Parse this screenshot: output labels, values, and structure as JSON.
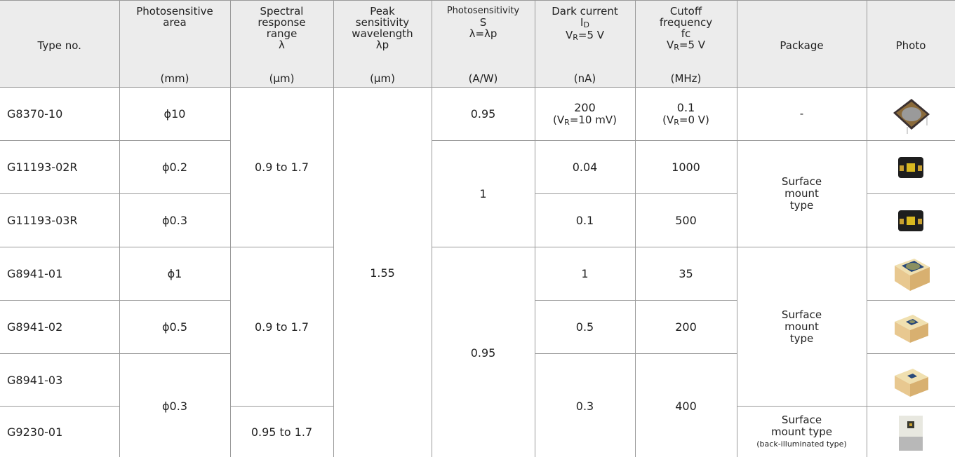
{
  "table": {
    "header": [
      {
        "lines": [
          [
            "Type no."
          ]
        ]
      },
      {
        "lines": [
          [
            "Photosensitive"
          ],
          [
            "area"
          ]
        ],
        "unit": "(mm)"
      },
      {
        "lines": [
          [
            "Spectral"
          ],
          [
            "response"
          ],
          [
            "range"
          ],
          [
            "λ"
          ]
        ],
        "unit": "(µm)"
      },
      {
        "lines": [
          [
            "Peak"
          ],
          [
            "sensitivity"
          ],
          [
            "wavelength"
          ],
          [
            "λp"
          ]
        ],
        "unit": "(µm)"
      },
      {
        "lines": [
          [
            "Photosensitivity"
          ],
          [
            "S"
          ],
          [
            "λ=λp"
          ]
        ],
        "unit": "(A/W)"
      },
      {
        "lines": [
          [
            "Dark current"
          ],
          [
            "I",
            "D"
          ],
          [
            "V",
            "R",
            "=5 V"
          ]
        ],
        "unit": "(nA)"
      },
      {
        "lines": [
          [
            "Cutoff"
          ],
          [
            "frequency"
          ],
          [
            "fc"
          ],
          [
            "V",
            "R",
            "=5 V"
          ]
        ],
        "unit": "(MHz)"
      },
      {
        "lines": [
          [
            "Package"
          ]
        ]
      },
      {
        "lines": [
          [
            "Photo"
          ]
        ]
      }
    ],
    "rows": [
      {
        "type": "G8370-10",
        "area": "ϕ10",
        "spectral": "0.9 to 1.7",
        "peak": "1.55",
        "sensitivity": "0.95",
        "dark": {
          "value": "200",
          "note": [
            "(V",
            "R",
            "=10 mV)"
          ]
        },
        "cutoff": {
          "value": "0.1",
          "note": [
            "(V",
            "R",
            "=0 V)"
          ]
        },
        "package": [
          "-"
        ]
      },
      {
        "type": "G11193-02R",
        "area": "ϕ0.2",
        "sensitivity": "1",
        "dark": {
          "value": "0.04"
        },
        "cutoff": {
          "value": "1000"
        },
        "package": [
          "Surface",
          "mount",
          "type"
        ]
      },
      {
        "type": "G11193-03R",
        "area": "ϕ0.3",
        "dark": {
          "value": "0.1"
        },
        "cutoff": {
          "value": "500"
        }
      },
      {
        "type": "G8941-01",
        "area": "ϕ1",
        "spectral": "0.9 to 1.7",
        "sensitivity": "0.95",
        "dark": {
          "value": "1"
        },
        "cutoff": {
          "value": "35"
        },
        "package": [
          "Surface",
          "mount",
          "type"
        ]
      },
      {
        "type": "G8941-02",
        "area": "ϕ0.5",
        "dark": {
          "value": "0.5"
        },
        "cutoff": {
          "value": "200"
        }
      },
      {
        "type": "G8941-03",
        "area": "ϕ0.3",
        "dark": {
          "value": "0.3"
        },
        "cutoff": {
          "value": "400"
        }
      },
      {
        "type": "G9230-01",
        "spectral": "0.95 to 1.7",
        "package": [
          "Surface",
          "mount type",
          "(back-illuminated type)"
        ]
      }
    ]
  }
}
